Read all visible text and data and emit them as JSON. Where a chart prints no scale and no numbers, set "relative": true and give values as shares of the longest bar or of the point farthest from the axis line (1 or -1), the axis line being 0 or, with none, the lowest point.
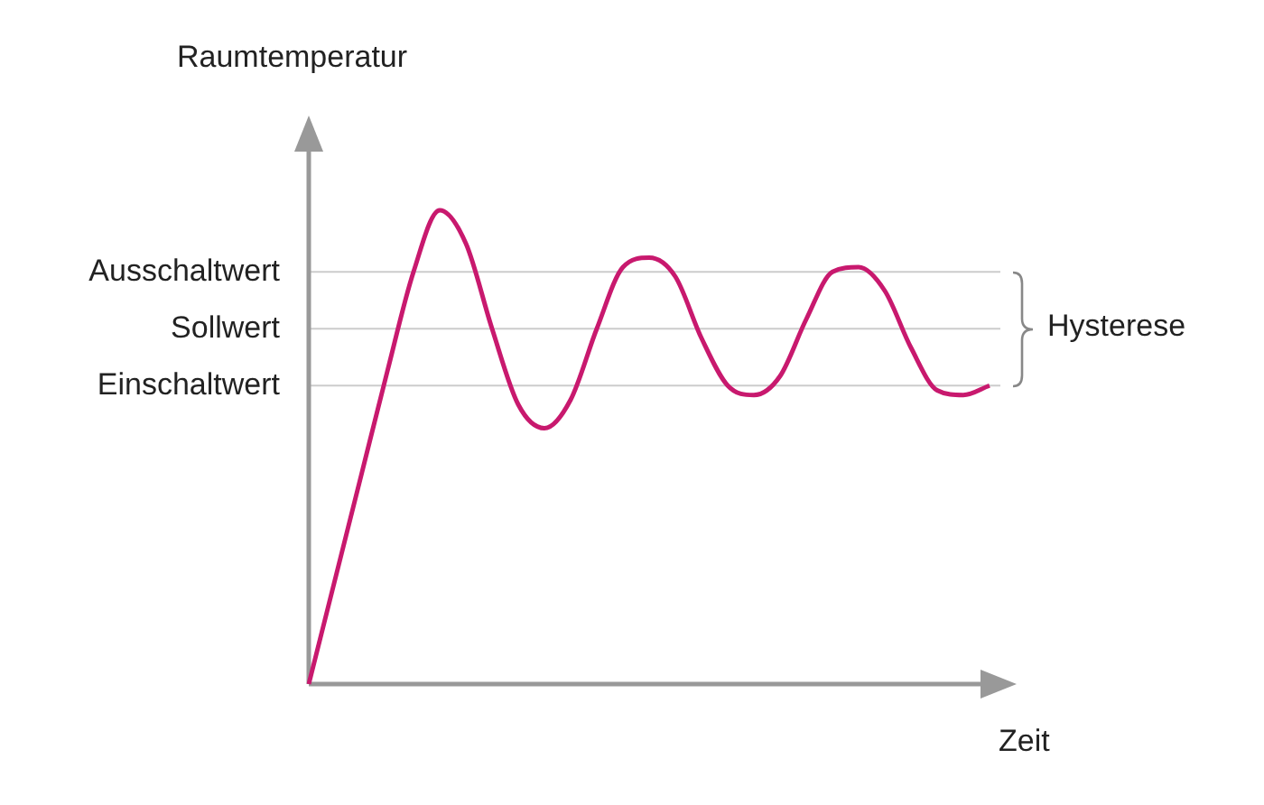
{
  "chart_data": {
    "type": "line",
    "xlabel": "Zeit",
    "ylabel": "Raumtemperatur",
    "relative": true,
    "marker": "none",
    "categories": [
      null,
      null,
      null,
      null,
      null,
      null,
      null,
      null,
      null,
      null,
      null,
      null,
      null,
      null,
      null,
      null,
      null,
      null,
      null,
      null,
      null,
      null,
      null,
      null,
      null,
      null,
      null
    ],
    "series": [
      {
        "color": "#c8196e",
        "values": [
          0,
          0.22,
          0.44,
          0.66,
          0.87,
          1.0,
          0.93,
          0.75,
          0.59,
          0.54,
          0.6,
          0.75,
          0.88,
          0.9,
          0.86,
          0.73,
          0.63,
          0.61,
          0.65,
          0.77,
          0.87,
          0.88,
          0.83,
          0.71,
          0.62,
          0.61,
          0.63
        ]
      }
    ],
    "ref_lines": [
      {
        "axis": "y",
        "value": 0.87,
        "label": "Ausschaltwert",
        "color": "#cccccc"
      },
      {
        "axis": "y",
        "value": 0.75,
        "label": "Sollwert",
        "color": "#cccccc"
      },
      {
        "axis": "y",
        "value": 0.63,
        "label": "Einschaltwert",
        "color": "#cccccc"
      }
    ],
    "annotations": [
      "Hysterese"
    ]
  }
}
